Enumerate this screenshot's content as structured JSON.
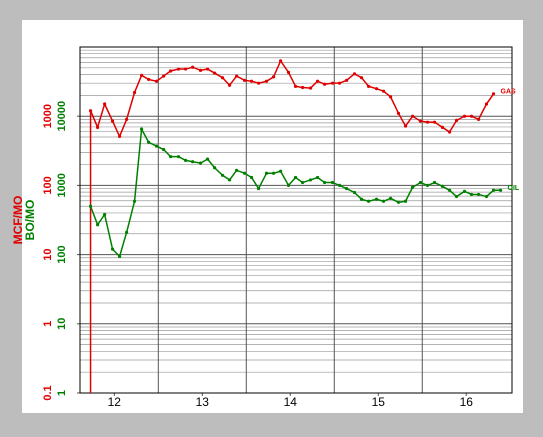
{
  "chart_data": {
    "type": "line",
    "log_scale": true,
    "grid": true,
    "y_label": "BO/MO",
    "y2_label": "MCF/MO",
    "xlim": [
      12.11,
      17.02
    ],
    "xticks": [
      {
        "value": 12.5,
        "label": "12"
      },
      {
        "value": 13.5,
        "label": "13"
      },
      {
        "value": 14.5,
        "label": "14"
      },
      {
        "value": 15.5,
        "label": "15"
      },
      {
        "value": 16.5,
        "label": "16"
      }
    ],
    "ylim": [
      1,
      100000
    ],
    "yticks": [
      1,
      10,
      100,
      1000,
      10000
    ],
    "y2lim": [
      0.1,
      10000
    ],
    "y2ticks": [
      0.1,
      1,
      10,
      100,
      1000
    ],
    "x": [
      12.23,
      12.31,
      12.39,
      12.48,
      12.56,
      12.64,
      12.73,
      12.81,
      12.89,
      12.98,
      13.06,
      13.14,
      13.23,
      13.31,
      13.39,
      13.48,
      13.56,
      13.64,
      13.73,
      13.81,
      13.89,
      13.98,
      14.06,
      14.14,
      14.23,
      14.31,
      14.39,
      14.48,
      14.56,
      14.64,
      14.73,
      14.81,
      14.89,
      14.98,
      15.06,
      15.14,
      15.23,
      15.31,
      15.39,
      15.48,
      15.56,
      15.64,
      15.73,
      15.81,
      15.89,
      15.98,
      16.06,
      16.14,
      16.23,
      16.31,
      16.39,
      16.48,
      16.56,
      16.64,
      16.73,
      16.81,
      16.89
    ],
    "series": [
      {
        "name": "GAS",
        "color": "#e00000",
        "axis": "y2",
        "values": [
          1200,
          690,
          1500,
          850,
          510,
          900,
          2200,
          3900,
          3400,
          3200,
          3800,
          4500,
          4800,
          4800,
          5100,
          4600,
          4800,
          4200,
          3600,
          2800,
          3800,
          3300,
          3200,
          3000,
          3200,
          3700,
          6300,
          4300,
          2700,
          2600,
          2550,
          3200,
          2900,
          3000,
          3000,
          3300,
          4100,
          3600,
          2700,
          2500,
          2300,
          1900,
          1100,
          720,
          1000,
          850,
          820,
          820,
          690,
          590,
          870,
          1000,
          1000,
          900,
          1500,
          2100,
          null
        ]
      },
      {
        "name": "OIL",
        "color": "#008000",
        "values": [
          500,
          270,
          380,
          120,
          94,
          210,
          590,
          6500,
          4200,
          3700,
          3300,
          2600,
          2600,
          2300,
          2200,
          2100,
          2400,
          1800,
          1400,
          1200,
          1650,
          1500,
          1300,
          900,
          1500,
          1500,
          1600,
          1000,
          1300,
          1100,
          1200,
          1300,
          1100,
          1100,
          1000,
          900,
          790,
          630,
          590,
          630,
          590,
          650,
          570,
          590,
          940,
          1100,
          1000,
          1100,
          970,
          850,
          690,
          820,
          740,
          740,
          690,
          850,
          850
        ]
      }
    ]
  }
}
